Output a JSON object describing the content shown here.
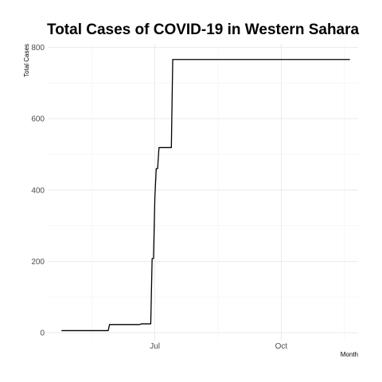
{
  "chart_data": {
    "type": "line",
    "title": "Total Cases of COVID-19 in Western Sahara",
    "xlabel": "Month",
    "ylabel": "Total Cases",
    "x_tick_labels": [
      {
        "date": "2020-07-01",
        "label": "Jul"
      },
      {
        "date": "2020-10-01",
        "label": "Oct"
      }
    ],
    "y_ticks": [
      0,
      200,
      400,
      600,
      800
    ],
    "xlim": [
      "2020-04-14",
      "2020-11-26"
    ],
    "ylim": [
      -22,
      810
    ],
    "grid": true,
    "series": [
      {
        "color": "#000000",
        "points": [
          {
            "date": "2020-04-24",
            "value": 6
          },
          {
            "date": "2020-05-28",
            "value": 6
          },
          {
            "date": "2020-05-29",
            "value": 23
          },
          {
            "date": "2020-06-20",
            "value": 23
          },
          {
            "date": "2020-06-21",
            "value": 25
          },
          {
            "date": "2020-06-28",
            "value": 25
          },
          {
            "date": "2020-06-29",
            "value": 208
          },
          {
            "date": "2020-06-30",
            "value": 208
          },
          {
            "date": "2020-07-01",
            "value": 380
          },
          {
            "date": "2020-07-02",
            "value": 460
          },
          {
            "date": "2020-07-03",
            "value": 460
          },
          {
            "date": "2020-07-04",
            "value": 519
          },
          {
            "date": "2020-07-13",
            "value": 519
          },
          {
            "date": "2020-07-14",
            "value": 766
          },
          {
            "date": "2020-11-20",
            "value": 766
          }
        ]
      }
    ]
  }
}
